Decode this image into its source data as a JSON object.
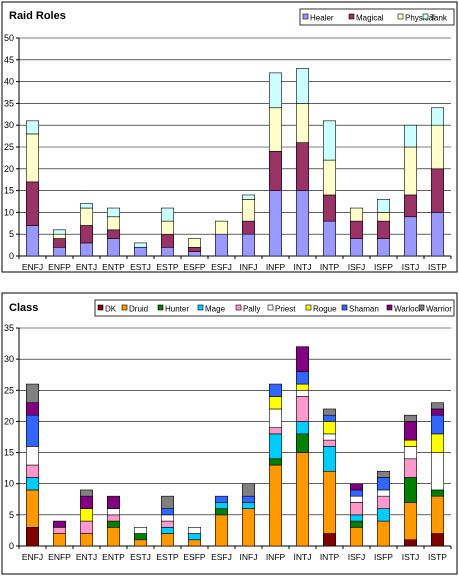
{
  "chart_data": [
    {
      "type": "bar",
      "stacked": true,
      "title": "Raid Roles",
      "xlabel": "",
      "ylabel": "",
      "ylim": [
        0,
        50
      ],
      "ytick_step": 5,
      "grid": true,
      "legend": "top-right",
      "categories": [
        "ENFJ",
        "ENFP",
        "ENTJ",
        "ENTP",
        "ESTJ",
        "ESTP",
        "ESFP",
        "ESFJ",
        "INFJ",
        "INFP",
        "INTJ",
        "INTP",
        "ISFJ",
        "ISFP",
        "ISTJ",
        "ISTP"
      ],
      "series": [
        {
          "name": "Healer",
          "color": "#9999ff",
          "values": [
            7,
            2,
            3,
            4,
            2,
            2,
            1,
            5,
            5,
            15,
            15,
            8,
            4,
            4,
            9,
            10
          ]
        },
        {
          "name": "Magical",
          "color": "#993366",
          "values": [
            10,
            2,
            4,
            2,
            0,
            3,
            1,
            0,
            3,
            9,
            11,
            6,
            4,
            4,
            5,
            10
          ]
        },
        {
          "name": "Physical",
          "color": "#ffffcc",
          "values": [
            11,
            1,
            4,
            3,
            0,
            3,
            2,
            3,
            5,
            10,
            9,
            8,
            3,
            2,
            11,
            10
          ]
        },
        {
          "name": "Tank",
          "color": "#ccffff",
          "values": [
            3,
            1,
            1,
            2,
            1,
            3,
            0,
            0,
            1,
            8,
            8,
            9,
            0,
            3,
            5,
            4
          ]
        }
      ]
    },
    {
      "type": "bar",
      "stacked": true,
      "title": "Class",
      "xlabel": "",
      "ylabel": "",
      "ylim": [
        0,
        35
      ],
      "ytick_step": 5,
      "grid": true,
      "legend": "top-right",
      "categories": [
        "ENFJ",
        "ENFP",
        "ENTJ",
        "ENTP",
        "ESTJ",
        "ESTP",
        "ESFP",
        "ESFJ",
        "INFJ",
        "INFP",
        "INTJ",
        "INTP",
        "ISFJ",
        "ISFP",
        "ISTJ",
        "ISTP"
      ],
      "series": [
        {
          "name": "DK",
          "color": "#800000",
          "values": [
            3,
            0,
            0,
            0,
            0,
            0,
            0,
            0,
            0,
            0,
            0,
            2,
            0,
            0,
            1,
            2
          ]
        },
        {
          "name": "Druid",
          "color": "#ff9900",
          "values": [
            6,
            2,
            2,
            3,
            1,
            2,
            1,
            5,
            6,
            13,
            15,
            10,
            3,
            4,
            6,
            6
          ]
        },
        {
          "name": "Hunter",
          "color": "#008000",
          "values": [
            0,
            0,
            0,
            1,
            1,
            0,
            0,
            1,
            0,
            1,
            3,
            0,
            1,
            0,
            4,
            1
          ]
        },
        {
          "name": "Mage",
          "color": "#00ccff",
          "values": [
            2,
            0,
            0,
            0,
            0,
            1,
            1,
            1,
            1,
            4,
            2,
            4,
            1,
            2,
            0,
            0
          ]
        },
        {
          "name": "Pally",
          "color": "#ff99cc",
          "values": [
            2,
            1,
            2,
            1,
            0,
            1,
            0,
            0,
            0,
            1,
            4,
            1,
            2,
            2,
            3,
            0
          ]
        },
        {
          "name": "Priest",
          "color": "#ffffff",
          "values": [
            3,
            0,
            0,
            1,
            1,
            1,
            1,
            0,
            0,
            3,
            1,
            1,
            1,
            1,
            2,
            6
          ]
        },
        {
          "name": "Rogue",
          "color": "#ffff00",
          "values": [
            0,
            0,
            2,
            0,
            0,
            0,
            0,
            0,
            0,
            2,
            1,
            2,
            0,
            0,
            1,
            3
          ]
        },
        {
          "name": "Shaman",
          "color": "#3366ff",
          "values": [
            5,
            0,
            0,
            0,
            0,
            1,
            0,
            1,
            1,
            2,
            2,
            1,
            1,
            2,
            0,
            3
          ]
        },
        {
          "name": "Warlock",
          "color": "#800080",
          "values": [
            2,
            1,
            2,
            2,
            0,
            0,
            0,
            0,
            0,
            0,
            4,
            0,
            1,
            0,
            3,
            1
          ]
        },
        {
          "name": "Warrior",
          "color": "#808080",
          "values": [
            3,
            0,
            1,
            0,
            0,
            2,
            0,
            0,
            2,
            0,
            0,
            1,
            0,
            1,
            1,
            1
          ]
        }
      ]
    }
  ]
}
